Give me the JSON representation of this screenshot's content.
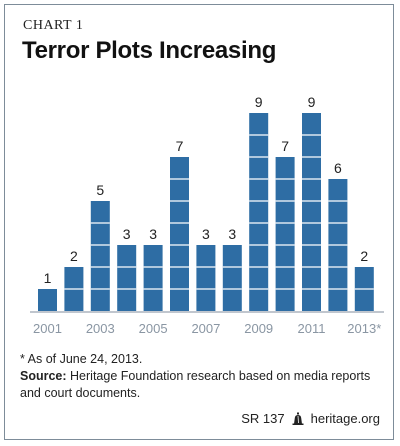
{
  "header": {
    "chart_label": "CHART 1",
    "title": "Terror Plots Increasing"
  },
  "footnote": {
    "asterisk_note": "* As of June 24, 2013.",
    "source_label": "Source:",
    "source_text": "Heritage Foundation research based on media reports and court documents."
  },
  "footer": {
    "report_id": "SR 137",
    "site": "heritage.org",
    "logo_icon": "liberty-bell-icon"
  },
  "colors": {
    "bar": "#2e6da4",
    "tick_text": "#8a96a3",
    "axis_line": "#9aa5b1",
    "value_text": "#222222"
  },
  "chart_data": {
    "type": "bar",
    "categories": [
      "2001",
      "2002",
      "2003",
      "2004",
      "2005",
      "2006",
      "2007",
      "2008",
      "2009",
      "2010",
      "2011",
      "2012",
      "2013"
    ],
    "tick_labels": [
      "2001",
      "",
      "2003",
      "",
      "2005",
      "",
      "2007",
      "",
      "2009",
      "",
      "2011",
      "",
      "2013*"
    ],
    "values": [
      1,
      2,
      5,
      3,
      3,
      7,
      3,
      3,
      9,
      7,
      9,
      6,
      2
    ],
    "title": "Terror Plots Increasing",
    "xlabel": "",
    "ylabel": "",
    "ylim": [
      0,
      9
    ],
    "grid": false,
    "segmented_bars": true
  }
}
